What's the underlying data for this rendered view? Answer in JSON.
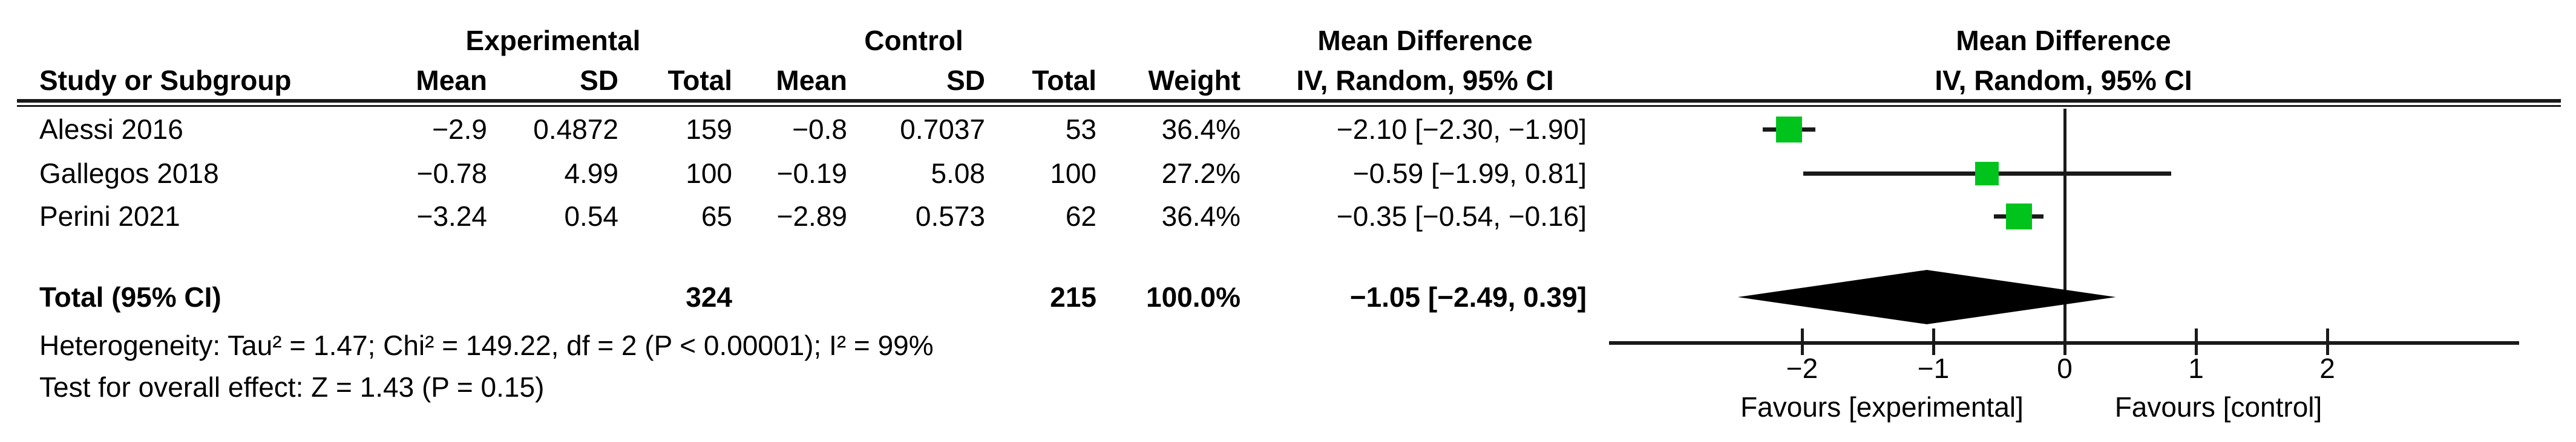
{
  "colors": {
    "marker_green": "#00C41C",
    "line": "#1a1a1a",
    "diamond": "#000000"
  },
  "table": {
    "header": {
      "experimental": "Experimental",
      "control": "Control",
      "md_left": "Mean Difference",
      "md_right": "Mean Difference",
      "study_or_subgroup": "Study or Subgroup",
      "e_mean": "Mean",
      "e_sd": "SD",
      "e_total": "Total",
      "c_mean": "Mean",
      "c_sd": "SD",
      "c_total": "Total",
      "weight": "Weight",
      "iv_random_left": "IV, Random, 95% CI",
      "iv_random_right": "IV, Random, 95% CI"
    },
    "rows": [
      {
        "study": "Alessi 2016",
        "e_mean": "−2.9",
        "e_sd": "0.4872",
        "e_total": "159",
        "c_mean": "−0.8",
        "c_sd": "0.7037",
        "c_total": "53",
        "weight": "36.4%",
        "ci": "−2.10 [−2.30, −1.90]"
      },
      {
        "study": "Gallegos 2018",
        "e_mean": "−0.78",
        "e_sd": "4.99",
        "e_total": "100",
        "c_mean": "−0.19",
        "c_sd": "5.08",
        "c_total": "100",
        "weight": "27.2%",
        "ci": "−0.59 [−1.99, 0.81]"
      },
      {
        "study": "Perini 2021",
        "e_mean": "−3.24",
        "e_sd": "0.54",
        "e_total": "65",
        "c_mean": "−2.89",
        "c_sd": "0.573",
        "c_total": "62",
        "weight": "36.4%",
        "ci": "−0.35 [−0.54, −0.16]"
      }
    ],
    "total": {
      "label": "Total (95% CI)",
      "e_total": "324",
      "c_total": "215",
      "weight": "100.0%",
      "ci": "−1.05 [−2.49, 0.39]"
    },
    "footnotes": {
      "heterogeneity": "Heterogeneity: Tau² = 1.47; Chi² = 149.22, df = 2 (P < 0.00001); I² = 99%",
      "overall_effect": "Test for overall effect: Z = 1.43 (P = 0.15)"
    }
  },
  "axis": {
    "tick_labels": [
      "−2",
      "−1",
      "0",
      "1",
      "2"
    ],
    "favours_left": "Favours [experimental]",
    "favours_right": "Favours [control]"
  },
  "chart_data": {
    "type": "forest",
    "title": "Mean Difference, IV, Random, 95% CI",
    "studies": [
      {
        "name": "Alessi 2016",
        "mean_e": -2.9,
        "sd_e": 0.4872,
        "n_e": 159,
        "mean_c": -0.8,
        "sd_c": 0.7037,
        "n_c": 53,
        "weight_pct": 36.4,
        "md": -2.1,
        "ci_low": -2.3,
        "ci_high": -1.9
      },
      {
        "name": "Gallegos 2018",
        "mean_e": -0.78,
        "sd_e": 4.99,
        "n_e": 100,
        "mean_c": -0.19,
        "sd_c": 5.08,
        "n_c": 100,
        "weight_pct": 27.2,
        "md": -0.59,
        "ci_low": -1.99,
        "ci_high": 0.81
      },
      {
        "name": "Perini 2021",
        "mean_e": -3.24,
        "sd_e": 0.54,
        "n_e": 65,
        "mean_c": -2.89,
        "sd_c": 0.573,
        "n_c": 62,
        "weight_pct": 36.4,
        "md": -0.35,
        "ci_low": -0.54,
        "ci_high": -0.16
      }
    ],
    "total": {
      "n_e": 324,
      "n_c": 215,
      "weight_pct": 100.0,
      "md": -1.05,
      "ci_low": -2.49,
      "ci_high": 0.39
    },
    "x_ticks": [
      -2,
      -1,
      0,
      1,
      2
    ],
    "xlim": [
      -3.47,
      3.46
    ],
    "x_axis_labels": [
      "Favours [experimental]",
      "Favours [control]"
    ],
    "heterogeneity": {
      "tau2": 1.47,
      "chi2": 149.22,
      "df": 2,
      "p": "< 0.00001",
      "i2_pct": 99
    },
    "overall_effect": {
      "z": 1.43,
      "p": 0.15
    }
  }
}
